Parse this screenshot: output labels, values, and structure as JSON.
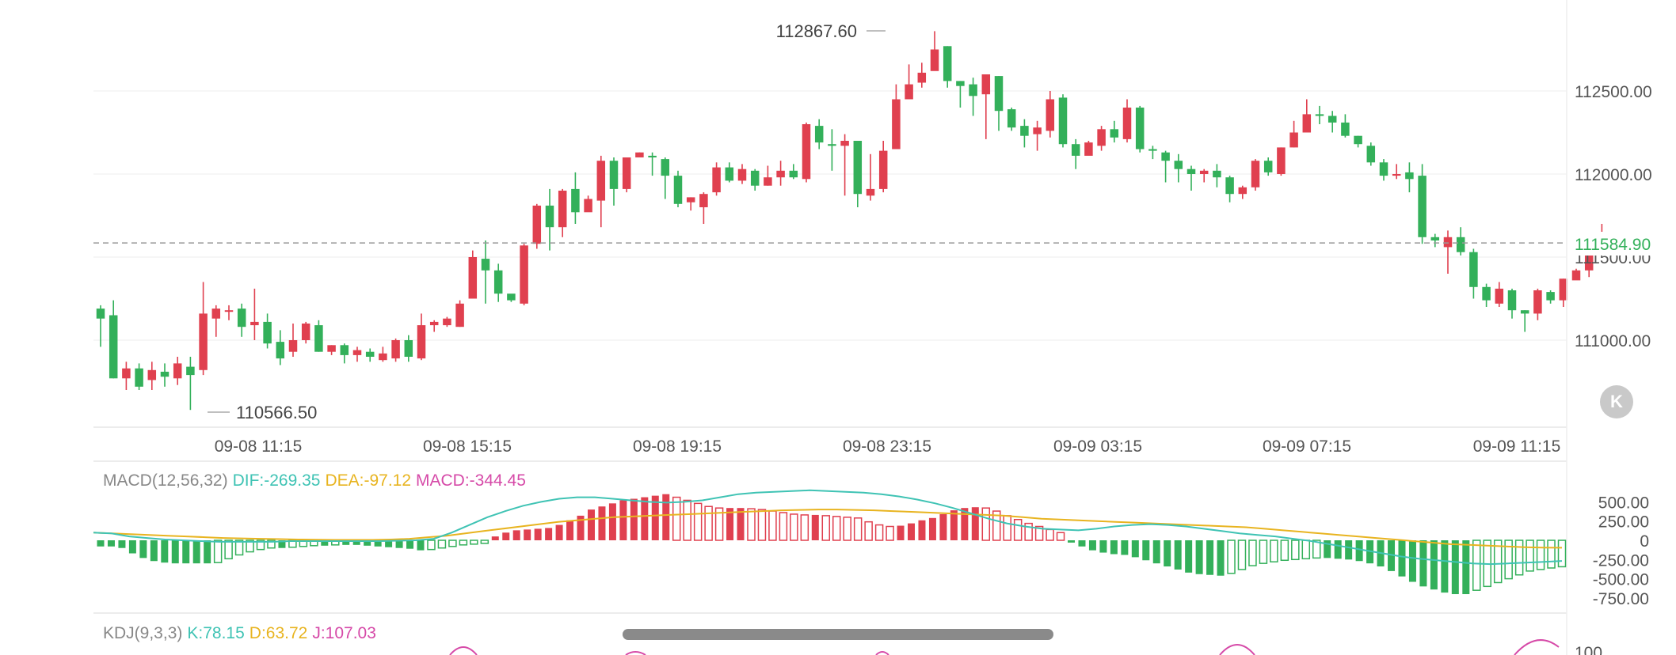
{
  "colors": {
    "up": "#e0404f",
    "down": "#33b05a",
    "dif": "#3fc3b4",
    "dea": "#e8b420",
    "macd": "#d64aa8",
    "k": "#3fc3b4",
    "d": "#e8b420",
    "j": "#d64aa8",
    "last_price": "#33b05a",
    "grid": "#ececec",
    "axis_text": "#555555"
  },
  "chart_data": [
    {
      "type": "candlestick",
      "title": "",
      "y_ticks": [
        112500.0,
        112000.0,
        111500.0,
        111000.0
      ],
      "y_tick_labels": [
        "112500.00",
        "112000.00",
        "111500.00",
        "111000.00"
      ],
      "x_tick_labels": [
        "09-08 11:15",
        "09-08 15:15",
        "09-08 19:15",
        "09-08 23:15",
        "09-09 03:15",
        "09-09 07:15",
        "09-09 11:15"
      ],
      "ylim": [
        110500,
        112900
      ],
      "grid": true,
      "high_label": "112867.60",
      "low_label": "110566.50",
      "last_price_label": "111584.90",
      "last_price": 111584.9,
      "candles": [
        [
          111190,
          111130,
          111210,
          110960
        ],
        [
          111150,
          110770,
          111240,
          110770
        ],
        [
          110770,
          110830,
          110870,
          110700
        ],
        [
          110830,
          110720,
          110860,
          110700
        ],
        [
          110760,
          110820,
          110870,
          110700
        ],
        [
          110810,
          110780,
          110860,
          110720
        ],
        [
          110770,
          110860,
          110900,
          110730
        ],
        [
          110840,
          110790,
          110900,
          110580
        ],
        [
          110820,
          111160,
          111350,
          110790
        ],
        [
          111130,
          111190,
          111210,
          111020
        ],
        [
          111180,
          111180,
          111210,
          111120
        ],
        [
          111190,
          111080,
          111220,
          111020
        ],
        [
          111090,
          111110,
          111310,
          111000
        ],
        [
          111110,
          110980,
          111160,
          110950
        ],
        [
          110990,
          110890,
          111060,
          110850
        ],
        [
          110930,
          111000,
          111100,
          110900
        ],
        [
          111000,
          111100,
          111110,
          110980
        ],
        [
          111090,
          110930,
          111120,
          110930
        ],
        [
          110930,
          110970,
          110970,
          110910
        ],
        [
          110970,
          110910,
          110980,
          110860
        ],
        [
          110910,
          110940,
          110960,
          110870
        ],
        [
          110930,
          110900,
          110950,
          110870
        ],
        [
          110880,
          110920,
          110960,
          110870
        ],
        [
          110890,
          111000,
          111010,
          110870
        ],
        [
          111000,
          110900,
          111030,
          110870
        ],
        [
          110890,
          111090,
          111160,
          110880
        ],
        [
          111090,
          111110,
          111120,
          111050
        ],
        [
          111090,
          111130,
          111140,
          111080
        ],
        [
          111080,
          111220,
          111240,
          111080
        ],
        [
          111250,
          111500,
          111540,
          111250
        ],
        [
          111490,
          111420,
          111600,
          111220
        ],
        [
          111420,
          111280,
          111460,
          111230
        ],
        [
          111280,
          111240,
          111270,
          111230
        ],
        [
          111220,
          111570,
          111580,
          111210
        ],
        [
          111580,
          111810,
          111820,
          111550
        ],
        [
          111810,
          111680,
          111910,
          111540
        ],
        [
          111680,
          111900,
          111910,
          111620
        ],
        [
          111910,
          111770,
          112010,
          111700
        ],
        [
          111770,
          111850,
          111870,
          111800
        ],
        [
          111840,
          112080,
          112110,
          111680
        ],
        [
          112080,
          111910,
          112100,
          111810
        ],
        [
          111910,
          112100,
          112100,
          111890
        ],
        [
          112100,
          112130,
          112130,
          112100
        ],
        [
          112110,
          112100,
          112130,
          111990
        ],
        [
          112090,
          111990,
          112100,
          111850
        ],
        [
          111990,
          111820,
          112020,
          111800
        ],
        [
          111830,
          111860,
          111860,
          111780
        ],
        [
          111800,
          111880,
          111890,
          111700
        ],
        [
          111890,
          112040,
          112070,
          111870
        ],
        [
          112040,
          111960,
          112070,
          111950
        ],
        [
          111960,
          112030,
          112060,
          111940
        ],
        [
          112020,
          111930,
          112030,
          111900
        ],
        [
          111930,
          111980,
          112050,
          111930
        ],
        [
          111980,
          112020,
          112080,
          111930
        ],
        [
          112020,
          111980,
          112060,
          111970
        ],
        [
          111970,
          112300,
          112310,
          111950
        ],
        [
          112290,
          112190,
          112330,
          112150
        ],
        [
          112180,
          112170,
          112270,
          112020
        ],
        [
          112170,
          112200,
          112240,
          111870
        ],
        [
          112200,
          111880,
          112200,
          111800
        ],
        [
          111870,
          111910,
          112120,
          111840
        ],
        [
          111910,
          112140,
          112200,
          111890
        ],
        [
          112150,
          112450,
          112540,
          112150
        ],
        [
          112450,
          112540,
          112660,
          112450
        ],
        [
          112550,
          112610,
          112670,
          112520
        ],
        [
          112620,
          112750,
          112860,
          112710
        ],
        [
          112770,
          112560,
          112770,
          112520
        ],
        [
          112560,
          112530,
          112560,
          112400
        ],
        [
          112540,
          112470,
          112580,
          112350
        ],
        [
          112480,
          112600,
          112600,
          112210
        ],
        [
          112590,
          112380,
          112590,
          112260
        ],
        [
          112390,
          112280,
          112400,
          112260
        ],
        [
          112290,
          112230,
          112330,
          112160
        ],
        [
          112240,
          112280,
          112320,
          112140
        ],
        [
          112260,
          112450,
          112500,
          112220
        ],
        [
          112460,
          112180,
          112480,
          112160
        ],
        [
          112180,
          112110,
          112210,
          112030
        ],
        [
          112110,
          112190,
          112200,
          112140
        ],
        [
          112170,
          112270,
          112290,
          112140
        ],
        [
          112270,
          112220,
          112320,
          112190
        ],
        [
          112210,
          112400,
          112450,
          112190
        ],
        [
          112400,
          112150,
          112410,
          112130
        ],
        [
          112150,
          112140,
          112170,
          112090
        ],
        [
          112130,
          112080,
          112140,
          111950
        ],
        [
          112080,
          112030,
          112120,
          111950
        ],
        [
          112030,
          112000,
          112050,
          111900
        ],
        [
          112000,
          112020,
          112030,
          111950
        ],
        [
          112020,
          111980,
          112060,
          111920
        ],
        [
          111980,
          111880,
          111990,
          111830
        ],
        [
          111880,
          111920,
          111930,
          111850
        ],
        [
          111920,
          112080,
          112090,
          111900
        ],
        [
          112080,
          112010,
          112100,
          111990
        ],
        [
          112000,
          112160,
          112160,
          111990
        ],
        [
          112160,
          112250,
          112320,
          112160
        ],
        [
          112250,
          112360,
          112450,
          112280
        ],
        [
          112360,
          112350,
          112410,
          112300
        ],
        [
          112350,
          112310,
          112380,
          112250
        ],
        [
          112310,
          112230,
          112360,
          112220
        ],
        [
          112230,
          112180,
          112230,
          112160
        ],
        [
          112170,
          112070,
          112190,
          112050
        ],
        [
          112070,
          111990,
          112090,
          111960
        ],
        [
          111990,
          112000,
          112060,
          111970
        ],
        [
          112010,
          111970,
          112070,
          111890
        ],
        [
          111990,
          111620,
          112060,
          111580
        ],
        [
          111620,
          111600,
          111640,
          111560
        ],
        [
          111560,
          111620,
          111660,
          111400
        ],
        [
          111620,
          111530,
          111680,
          111510
        ],
        [
          111530,
          111320,
          111550,
          111250
        ],
        [
          111320,
          111240,
          111340,
          111200
        ],
        [
          111220,
          111310,
          111350,
          111200
        ],
        [
          111300,
          111180,
          111310,
          111130
        ],
        [
          111180,
          111160,
          111180,
          111050
        ],
        [
          111160,
          111300,
          111310,
          111120
        ],
        [
          111290,
          111240,
          111300,
          111220
        ],
        [
          111240,
          111370,
          111370,
          111200
        ],
        [
          111360,
          111420,
          111430,
          111370
        ],
        [
          111420,
          111530,
          111550,
          111380
        ],
        [
          111550,
          111640,
          111700,
          111560
        ],
        [
          111620,
          111580,
          111610,
          111560
        ]
      ]
    },
    {
      "type": "bar+line",
      "name": "MACD(12,56,32)",
      "label": "MACD(12,56,32)",
      "dif_label": "DIF:-269.35",
      "dea_label": "DEA:-97.12",
      "macd_label": "MACD:-344.45",
      "y_tick_labels": [
        "500.00",
        "250.00",
        "0",
        "-250.00",
        "-500.00",
        "-750.00"
      ],
      "y_ticks": [
        500,
        250,
        0,
        -250,
        -500,
        -750
      ],
      "ylim": [
        -800,
        650
      ],
      "histogram": [
        -80,
        -80,
        -100,
        -170,
        -230,
        -270,
        -290,
        -300,
        -300,
        -300,
        -300,
        -290,
        -240,
        -190,
        -150,
        -120,
        -100,
        -100,
        -90,
        -80,
        -70,
        -70,
        -60,
        -60,
        -60,
        -70,
        -80,
        -90,
        -100,
        -110,
        -130,
        -120,
        -100,
        -80,
        -60,
        -50,
        -40,
        50,
        100,
        130,
        140,
        150,
        160,
        200,
        260,
        320,
        400,
        440,
        480,
        520,
        540,
        560,
        580,
        600,
        560,
        520,
        480,
        440,
        420,
        420,
        420,
        410,
        400,
        380,
        360,
        340,
        330,
        330,
        320,
        310,
        300,
        290,
        240,
        200,
        180,
        190,
        220,
        260,
        290,
        340,
        390,
        420,
        430,
        420,
        380,
        320,
        270,
        220,
        180,
        140,
        100,
        -30,
        -80,
        -130,
        -160,
        -180,
        -190,
        -220,
        -260,
        -300,
        -340,
        -380,
        -420,
        -440,
        -450,
        -460,
        -430,
        -380,
        -330,
        -300,
        -280,
        -260,
        -250,
        -240,
        -230,
        -230,
        -240,
        -250,
        -270,
        -300,
        -340,
        -400,
        -470,
        -540,
        -600,
        -640,
        -680,
        -700,
        -700,
        -650,
        -600,
        -550,
        -500,
        -450,
        -400,
        -380,
        -360,
        -344
      ],
      "dif": [
        100,
        90,
        50,
        30,
        10,
        0,
        -10,
        -20,
        -20,
        -20,
        -20,
        -10,
        -10,
        -10,
        -10,
        -10,
        -10,
        -5,
        0,
        20,
        100,
        200,
        300,
        380,
        450,
        500,
        540,
        560,
        560,
        540,
        520,
        500,
        490,
        500,
        520,
        560,
        600,
        620,
        630,
        640,
        650,
        640,
        630,
        620,
        600,
        570,
        530,
        480,
        420,
        350,
        280,
        220,
        180,
        150,
        140,
        130,
        150,
        180,
        200,
        210,
        200,
        180,
        150,
        120,
        90,
        70,
        50,
        20,
        -10,
        -50,
        -90,
        -130,
        -170,
        -210,
        -240,
        -260,
        -280,
        -300,
        -310,
        -300,
        -290,
        -280,
        -269
      ],
      "dea": [
        100,
        90,
        80,
        70,
        60,
        50,
        40,
        30,
        25,
        20,
        15,
        10,
        8,
        5,
        5,
        5,
        10,
        20,
        40,
        60,
        90,
        120,
        150,
        180,
        210,
        240,
        260,
        280,
        300,
        310,
        320,
        330,
        340,
        350,
        360,
        370,
        380,
        390,
        395,
        400,
        400,
        395,
        390,
        380,
        370,
        360,
        350,
        340,
        330,
        320,
        300,
        280,
        270,
        260,
        250,
        240,
        230,
        220,
        210,
        200,
        190,
        180,
        170,
        150,
        130,
        110,
        90,
        70,
        50,
        30,
        10,
        -10,
        -30,
        -50,
        -60,
        -70,
        -80,
        -90,
        -95,
        -97
      ]
    },
    {
      "type": "line",
      "name": "KDJ(9,3,3)",
      "label": "KDJ(9,3,3)",
      "k_label": "K:78.15",
      "d_label": "D:63.72",
      "j_label": "J:107.03",
      "y_tick_labels": [
        "100"
      ],
      "y_ticks": [
        100
      ]
    }
  ]
}
